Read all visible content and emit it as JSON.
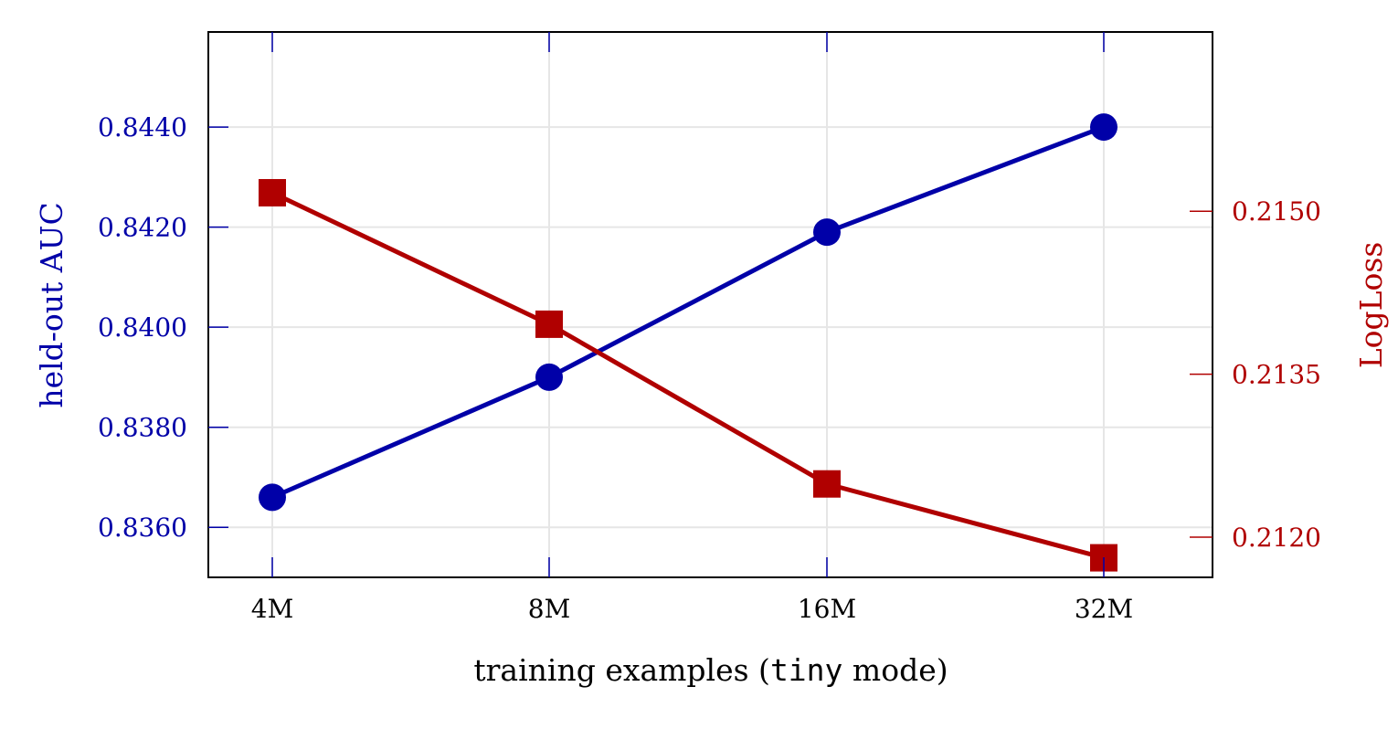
{
  "chart_data": {
    "type": "line",
    "categories": [
      "4M",
      "8M",
      "16M",
      "32M"
    ],
    "xlabel": {
      "prefix": "training examples (",
      "code": "tiny",
      "suffix": " mode)"
    },
    "y_left": {
      "label": "held-out AUC",
      "ylim": [
        0.835,
        0.8459
      ],
      "ticks": [
        "0.8360",
        "0.8380",
        "0.8400",
        "0.8420",
        "0.8440"
      ],
      "color": "#0000A8"
    },
    "y_right": {
      "label": "LogLoss",
      "ylim": [
        0.21163,
        0.21665
      ],
      "ticks": [
        "0.2120",
        "0.2135",
        "0.2150"
      ],
      "color": "#B00000"
    },
    "series": [
      {
        "axis": "left",
        "marker": "circle",
        "values": [
          0.8366,
          0.839,
          0.8419,
          0.844
        ]
      },
      {
        "axis": "right",
        "marker": "square",
        "values": [
          0.21517,
          0.21396,
          0.21249,
          0.21181
        ]
      }
    ],
    "grid": true,
    "legend": "none"
  }
}
